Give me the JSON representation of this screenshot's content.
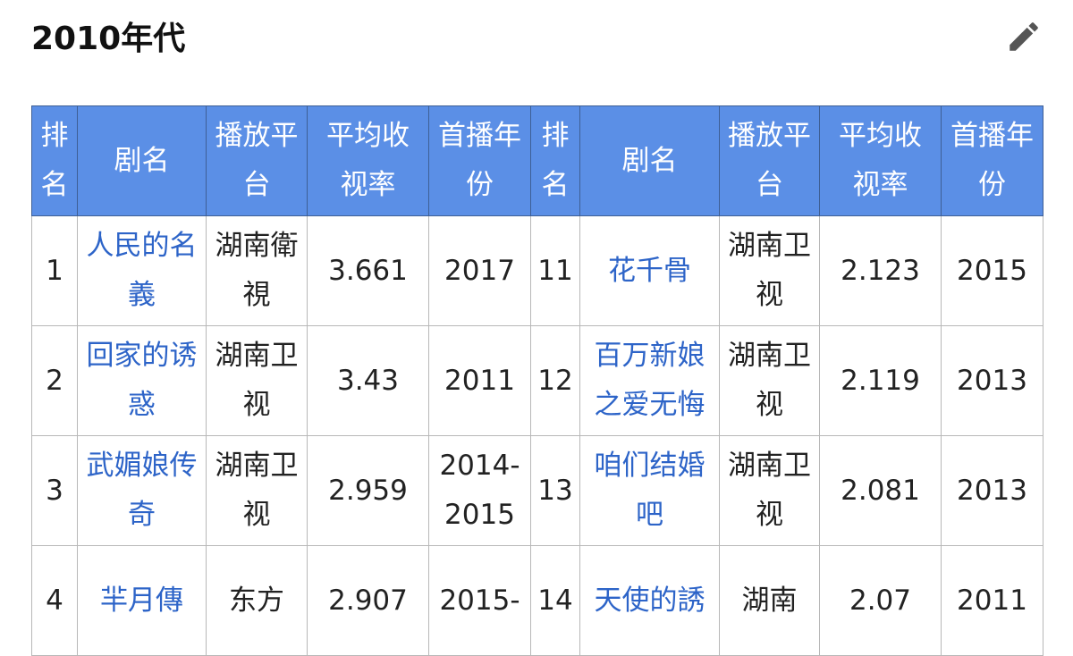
{
  "section": {
    "title": "2010年代",
    "edit_icon": "pencil-icon"
  },
  "colors": {
    "header_bg": "#5b8fe6",
    "link": "#2d64c8"
  },
  "headers": [
    "排名",
    "剧名",
    "播放平台",
    "平均收视率",
    "首播年份",
    "排名",
    "剧名",
    "播放平台",
    "平均收视率",
    "首播年份"
  ],
  "rows": [
    {
      "l": {
        "rank": "1",
        "title": "人民的名義",
        "platform": "湖南衛視",
        "rating": "3.661",
        "year": "2017"
      },
      "r": {
        "rank": "11",
        "title": "花千骨",
        "platform": "湖南卫视",
        "rating": "2.123",
        "year": "2015"
      }
    },
    {
      "l": {
        "rank": "2",
        "title": "回家的诱惑",
        "platform": "湖南卫视",
        "rating": "3.43",
        "year": "2011"
      },
      "r": {
        "rank": "12",
        "title": "百万新娘之爱无悔",
        "platform": "湖南卫视",
        "rating": "2.119",
        "year": "2013"
      }
    },
    {
      "l": {
        "rank": "3",
        "title": "武媚娘传奇",
        "platform": "湖南卫视",
        "rating": "2.959",
        "year": "2014-2015"
      },
      "r": {
        "rank": "13",
        "title": "咱们结婚吧",
        "platform": "湖南卫视",
        "rating": "2.081",
        "year": "2013"
      }
    },
    {
      "l": {
        "rank": "4",
        "title": "羋月傳",
        "platform": "东方",
        "rating": "2.907",
        "year": "2015-"
      },
      "r": {
        "rank": "14",
        "title": "天使的誘",
        "platform": "湖南",
        "rating": "2.07",
        "year": "2011"
      }
    }
  ]
}
